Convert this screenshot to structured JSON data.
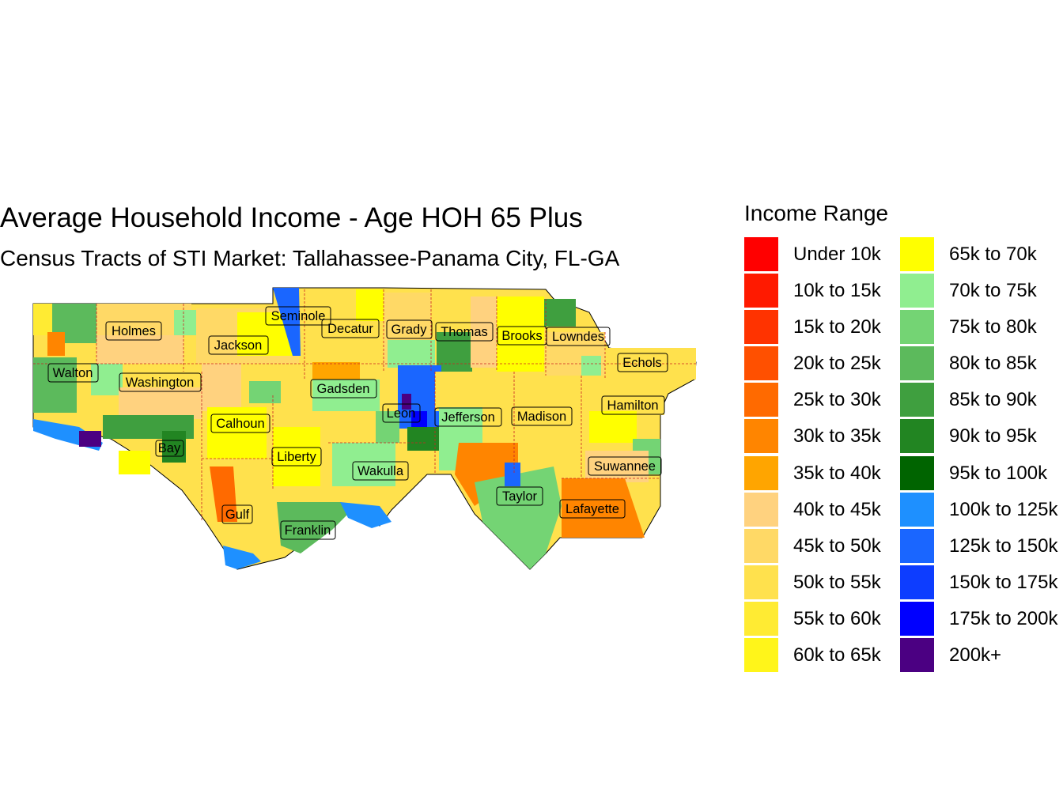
{
  "title": "Average Household Income - Age HOH 65 Plus",
  "subtitle": "Census Tracts of STI Market: Tallahassee-Panama City, FL-GA",
  "legend": {
    "title": "Income Range",
    "items": [
      {
        "label": "Under 10k",
        "color": "#ff0000"
      },
      {
        "label": "10k to 15k",
        "color": "#ff1a00"
      },
      {
        "label": "15k to 20k",
        "color": "#ff3300"
      },
      {
        "label": "20k to 25k",
        "color": "#ff5000"
      },
      {
        "label": "25k to 30k",
        "color": "#ff6a00"
      },
      {
        "label": "30k to 35k",
        "color": "#ff8500"
      },
      {
        "label": "35k to 40k",
        "color": "#ffa500"
      },
      {
        "label": "40k to 45k",
        "color": "#ffd27f"
      },
      {
        "label": "45k to 50k",
        "color": "#ffd966"
      },
      {
        "label": "50k to 55k",
        "color": "#ffe14d"
      },
      {
        "label": "55k to 60k",
        "color": "#ffeb33"
      },
      {
        "label": "60k to 65k",
        "color": "#fff51a"
      },
      {
        "label": "65k to 70k",
        "color": "#ffff00"
      },
      {
        "label": "70k to 75k",
        "color": "#90ee90"
      },
      {
        "label": "75k to 80k",
        "color": "#74d474"
      },
      {
        "label": "80k to 85k",
        "color": "#5cba5c"
      },
      {
        "label": "85k to 90k",
        "color": "#3f9f3f"
      },
      {
        "label": "90k to 95k",
        "color": "#228522"
      },
      {
        "label": "95k to 100k",
        "color": "#006400"
      },
      {
        "label": "100k to 125k",
        "color": "#1e90ff"
      },
      {
        "label": "125k to 150k",
        "color": "#1a66ff"
      },
      {
        "label": "150k to 175k",
        "color": "#0d3dff"
      },
      {
        "label": "175k to 200k",
        "color": "#0000ff"
      },
      {
        "label": "200k+",
        "color": "#4b0082"
      }
    ]
  },
  "counties": [
    {
      "name": "Holmes"
    },
    {
      "name": "Jackson"
    },
    {
      "name": "Seminole"
    },
    {
      "name": "Decatur"
    },
    {
      "name": "Grady"
    },
    {
      "name": "Thomas"
    },
    {
      "name": "Brooks"
    },
    {
      "name": "Lowndes"
    },
    {
      "name": "Echols"
    },
    {
      "name": "Walton"
    },
    {
      "name": "Washington"
    },
    {
      "name": "Gadsden"
    },
    {
      "name": "Leon"
    },
    {
      "name": "Jefferson"
    },
    {
      "name": "Madison"
    },
    {
      "name": "Hamilton"
    },
    {
      "name": "Calhoun"
    },
    {
      "name": "Bay"
    },
    {
      "name": "Liberty"
    },
    {
      "name": "Wakulla"
    },
    {
      "name": "Suwannee"
    },
    {
      "name": "Taylor"
    },
    {
      "name": "Lafayette"
    },
    {
      "name": "Gulf"
    },
    {
      "name": "Franklin"
    }
  ]
}
